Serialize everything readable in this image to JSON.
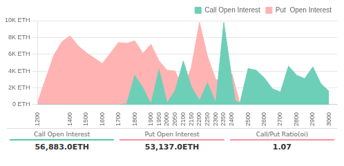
{
  "chart_data": {
    "type": "area",
    "series": [
      {
        "name": "Call Open Interest",
        "color": "#6dcfb8",
        "x": [
          1200,
          1300,
          1400,
          1500,
          1600,
          1700,
          1750,
          1800,
          1850,
          1900,
          1950,
          2000,
          2050,
          2100,
          2150,
          2200,
          2250,
          2300,
          2350,
          2400,
          2420,
          2450,
          2500,
          2550,
          2600,
          2650,
          2700,
          2750,
          2800,
          2850,
          2900,
          2950,
          3000
        ],
        "values": [
          0,
          0,
          0,
          0,
          0,
          0,
          100,
          3500,
          2000,
          100,
          4200,
          200,
          1700,
          5200,
          2100,
          500,
          2600,
          200,
          9800,
          3100,
          500,
          200,
          4300,
          4100,
          3200,
          1900,
          1500,
          4600,
          3500,
          3100,
          4500,
          2500,
          1600
        ]
      },
      {
        "name": "Put  Open Interest",
        "color": "#ffb3b3",
        "x": [
          1200,
          1300,
          1350,
          1400,
          1450,
          1500,
          1600,
          1700,
          1750,
          1800,
          1850,
          1900,
          1950,
          2000,
          2050,
          2100,
          2150,
          2200,
          2250,
          2300,
          2350,
          2400,
          2450,
          2500,
          2600,
          2700,
          2800,
          2900,
          3000
        ],
        "values": [
          300,
          5900,
          7500,
          8200,
          7000,
          6200,
          4900,
          7400,
          7300,
          7600,
          6100,
          7200,
          5200,
          4100,
          4000,
          1700,
          4500,
          9800,
          5700,
          3000,
          2700,
          3700,
          100,
          200,
          100,
          100,
          100,
          100,
          100
        ]
      }
    ],
    "xlim": [
      1200,
      3050
    ],
    "xticks": [
      1200,
      1400,
      1500,
      1600,
      1700,
      1800,
      1900,
      1950,
      2000,
      2050,
      2100,
      2150,
      2200,
      2250,
      2300,
      2350,
      2400,
      2500,
      2600,
      2700,
      2800,
      2900,
      3000
    ],
    "ylim": [
      0,
      10000
    ],
    "yticks": [
      {
        "value": 0,
        "label": "0 ETH"
      },
      {
        "value": 2000,
        "label": "2K ETH"
      },
      {
        "value": 4000,
        "label": "4K ETH"
      },
      {
        "value": 6000,
        "label": "6K ETH"
      },
      {
        "value": 8000,
        "label": "8K ETH"
      },
      {
        "value": 10000,
        "label": "10K ETH"
      }
    ],
    "grid": "y",
    "legend": "upper right",
    "annotations": [
      {
        "label": "Call Open Interest",
        "text": "56,883.0ETH",
        "color": "#4ecba6"
      },
      {
        "label": "Put Open Interest",
        "text": "53,137.0ETH",
        "color": "#ff8fa3"
      },
      {
        "label": "Call/Put Ratio(oi)",
        "text": "1.07",
        "color": "#ff8fa3"
      }
    ]
  }
}
